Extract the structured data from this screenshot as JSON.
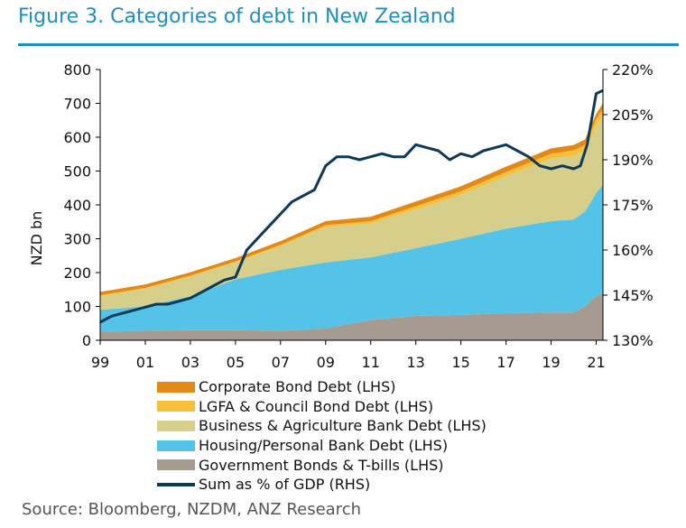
{
  "figure": {
    "title": "Figure 3. Categories of debt in New Zealand",
    "source": "Source: Bloomberg, NZDM, ANZ Research"
  },
  "chart_data": {
    "type": "area",
    "title": "Figure 3. Categories of debt in New Zealand",
    "ylabel": "NZD bn",
    "ylabel_right": "",
    "x_ticks": [
      "99",
      "01",
      "03",
      "05",
      "07",
      "09",
      "11",
      "13",
      "15",
      "17",
      "19",
      "21"
    ],
    "x_tick_values": [
      1999,
      2001,
      2003,
      2005,
      2007,
      2009,
      2011,
      2013,
      2015,
      2017,
      2019,
      2021
    ],
    "xlim": [
      1999,
      2021.3
    ],
    "ylim": [
      0,
      800
    ],
    "y_ticks": [
      "0",
      "100",
      "200",
      "300",
      "400",
      "500",
      "600",
      "700",
      "800"
    ],
    "ylim_right": [
      130,
      220
    ],
    "y_ticks_right": [
      "130%",
      "145%",
      "160%",
      "175%",
      "190%",
      "205%",
      "220%"
    ],
    "legend_position": "bottom",
    "x": [
      1999,
      2001,
      2003,
      2005,
      2007,
      2009,
      2011,
      2013,
      2015,
      2017,
      2019,
      2020,
      2020.5,
      2021,
      2021.3
    ],
    "series": [
      {
        "name": "Government Bonds & T-bills (LHS)",
        "axis": "left",
        "stacked": true,
        "color": "#a69b90",
        "values": [
          25,
          28,
          30,
          30,
          28,
          35,
          60,
          72,
          75,
          80,
          82,
          82,
          100,
          130,
          140
        ]
      },
      {
        "name": "Housing/Personal Bank Debt (LHS)",
        "axis": "left",
        "stacked": true,
        "color": "#55c3e8",
        "values": [
          65,
          72,
          100,
          150,
          180,
          195,
          185,
          200,
          225,
          250,
          270,
          275,
          280,
          305,
          320
        ]
      },
      {
        "name": "Business & Agriculture Bank Debt (LHS)",
        "axis": "left",
        "stacked": true,
        "color": "#d6cf8c",
        "values": [
          40,
          52,
          58,
          50,
          70,
          105,
          100,
          115,
          130,
          155,
          185,
          188,
          180,
          200,
          205
        ]
      },
      {
        "name": "LGFA & Council Bond Debt (LHS)",
        "axis": "left",
        "stacked": true,
        "color": "#f6bf3a",
        "values": [
          3,
          3,
          3,
          3,
          4,
          5,
          7,
          9,
          10,
          12,
          14,
          16,
          17,
          18,
          19
        ]
      },
      {
        "name": "Corporate Bond Debt (LHS)",
        "axis": "left",
        "stacked": true,
        "color": "#e28a17",
        "values": [
          10,
          10,
          10,
          10,
          11,
          12,
          13,
          14,
          15,
          16,
          16,
          16,
          16,
          16,
          16
        ]
      },
      {
        "name": "Sum as % of GDP (RHS)",
        "axis": "right",
        "type": "line",
        "color": "#0e3a5a",
        "x": [
          1999,
          1999.5,
          2000,
          2000.5,
          2001,
          2001.5,
          2002,
          2002.5,
          2003,
          2003.5,
          2004,
          2004.5,
          2005,
          2005.5,
          2006,
          2006.5,
          2007,
          2007.5,
          2008,
          2008.5,
          2009,
          2009.5,
          2010,
          2010.5,
          2011,
          2011.5,
          2012,
          2012.5,
          2013,
          2013.5,
          2014,
          2014.5,
          2015,
          2015.5,
          2016,
          2016.5,
          2017,
          2017.5,
          2018,
          2018.5,
          2019,
          2019.5,
          2020,
          2020.3,
          2020.6,
          2021,
          2021.3
        ],
        "values": [
          136,
          138,
          139,
          140,
          141,
          142,
          142,
          143,
          144,
          146,
          148,
          150,
          151,
          160,
          164,
          168,
          172,
          176,
          178,
          180,
          188,
          191,
          191,
          190,
          191,
          192,
          191,
          191,
          195,
          194,
          193,
          190,
          192,
          191,
          193,
          194,
          195,
          193,
          191,
          188,
          187,
          188,
          187,
          188,
          195,
          212,
          213
        ]
      }
    ]
  }
}
